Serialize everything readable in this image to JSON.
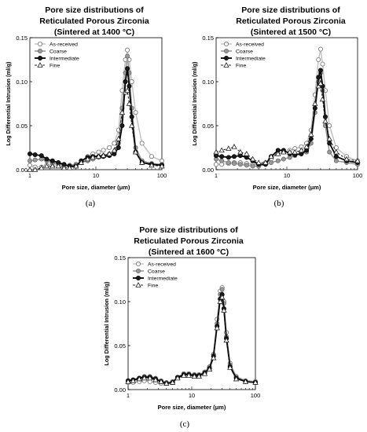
{
  "chart_data": [
    {
      "type": "line",
      "title_line1": "Pore size distributions of",
      "title_line2": "Reticulated Porous Zirconia",
      "title_line3": "(Sintered at 1400 °C)",
      "xlabel": "Pore size, diameter (μm)",
      "ylabel": "Log Differential Intrusion (ml/g)",
      "xscale": "log",
      "xlim": [
        1,
        100
      ],
      "ylim": [
        0,
        0.15
      ],
      "xticks": [
        "1",
        "10",
        "100"
      ],
      "yticks": [
        "0.00",
        "0.05",
        "0.10",
        "0.15"
      ],
      "legend_position": "top-left",
      "caption": "(a)",
      "series": [
        {
          "name": "As-received",
          "marker": "open-circle",
          "color": "#b0b0b0",
          "x": [
            1.0,
            1.2,
            1.5,
            1.8,
            2.2,
            2.7,
            3.3,
            4.0,
            5.0,
            6.0,
            7.5,
            9.0,
            11,
            13,
            16,
            19,
            22,
            25,
            28,
            30,
            32,
            35,
            40,
            50,
            70,
            100
          ],
          "y": [
            0.005,
            0.003,
            0.003,
            0.005,
            0.007,
            0.006,
            0.004,
            0.004,
            0.006,
            0.01,
            0.015,
            0.018,
            0.02,
            0.022,
            0.025,
            0.03,
            0.045,
            0.09,
            0.125,
            0.136,
            0.125,
            0.1,
            0.065,
            0.03,
            0.015,
            0.01
          ]
        },
        {
          "name": "Coarse",
          "marker": "filled-circle",
          "color": "#8a8a8a",
          "x": [
            1.0,
            1.2,
            1.5,
            1.8,
            2.2,
            2.7,
            3.3,
            4.0,
            5.0,
            6.0,
            7.5,
            9.0,
            11,
            13,
            16,
            19,
            22,
            25,
            28,
            30,
            32,
            35,
            40,
            50,
            70,
            100
          ],
          "y": [
            0.01,
            0.011,
            0.012,
            0.01,
            0.008,
            0.006,
            0.005,
            0.005,
            0.006,
            0.008,
            0.01,
            0.012,
            0.014,
            0.016,
            0.018,
            0.02,
            0.03,
            0.07,
            0.11,
            0.129,
            0.11,
            0.07,
            0.025,
            0.01,
            0.007,
            0.006
          ]
        },
        {
          "name": "Intermediate",
          "marker": "filled-circle-black",
          "color": "#000000",
          "x": [
            1.0,
            1.2,
            1.5,
            1.8,
            2.2,
            2.7,
            3.3,
            4.0,
            5.0,
            6.0,
            7.5,
            9.0,
            11,
            13,
            16,
            19,
            22,
            25,
            28,
            30,
            32,
            35,
            40,
            50,
            70,
            100
          ],
          "y": [
            0.018,
            0.017,
            0.016,
            0.012,
            0.01,
            0.008,
            0.006,
            0.004,
            0.004,
            0.01,
            0.014,
            0.015,
            0.015,
            0.015,
            0.016,
            0.018,
            0.025,
            0.05,
            0.1,
            0.115,
            0.095,
            0.06,
            0.02,
            0.008,
            0.006,
            0.005
          ]
        },
        {
          "name": "Fine",
          "marker": "open-triangle",
          "color": "#333333",
          "x": [
            1.0,
            1.2,
            1.5,
            1.8,
            2.2,
            2.7,
            3.3,
            4.0,
            5.0,
            6.0,
            7.5,
            9.0,
            11,
            13,
            16,
            19,
            22,
            25,
            28,
            30,
            32,
            35,
            40,
            50,
            70,
            100
          ],
          "y": [
            0.0,
            0.0,
            0.002,
            0.004,
            0.004,
            0.004,
            0.002,
            0.002,
            0.004,
            0.008,
            0.012,
            0.014,
            0.015,
            0.016,
            0.018,
            0.022,
            0.035,
            0.065,
            0.088,
            0.09,
            0.075,
            0.05,
            0.02,
            0.008,
            0.005,
            0.004
          ]
        }
      ]
    },
    {
      "type": "line",
      "title_line1": "Pore size distributions of",
      "title_line2": "Reticulated Porous Zirconia",
      "title_line3": "(Sintered at 1500 °C)",
      "xlabel": "Pore size, diameter (μm)",
      "ylabel": "Log Differential Intrusion (ml/g)",
      "xscale": "log",
      "xlim": [
        1,
        100
      ],
      "ylim": [
        0,
        0.15
      ],
      "xticks": [
        "1",
        "10",
        "100"
      ],
      "yticks": [
        "0.00",
        "0.05",
        "0.10",
        "0.15"
      ],
      "legend_position": "top-left",
      "caption": "(b)",
      "series": [
        {
          "name": "As-received",
          "marker": "open-circle",
          "color": "#b0b0b0",
          "x": [
            1.0,
            1.2,
            1.5,
            1.8,
            2.2,
            2.7,
            3.3,
            4.0,
            5.0,
            6.0,
            7.5,
            9.0,
            11,
            13,
            16,
            19,
            22,
            25,
            28,
            30,
            32,
            35,
            40,
            50,
            70,
            100
          ],
          "y": [
            0.006,
            0.006,
            0.007,
            0.008,
            0.008,
            0.007,
            0.006,
            0.006,
            0.008,
            0.012,
            0.018,
            0.02,
            0.022,
            0.024,
            0.026,
            0.03,
            0.045,
            0.085,
            0.125,
            0.137,
            0.12,
            0.09,
            0.05,
            0.025,
            0.015,
            0.01
          ]
        },
        {
          "name": "Coarse",
          "marker": "filled-circle",
          "color": "#8a8a8a",
          "x": [
            1.0,
            1.2,
            1.5,
            1.8,
            2.2,
            2.7,
            3.3,
            4.0,
            5.0,
            6.0,
            7.5,
            9.0,
            11,
            13,
            16,
            19,
            22,
            25,
            28,
            30,
            32,
            35,
            40,
            50,
            70,
            100
          ],
          "y": [
            0.012,
            0.01,
            0.008,
            0.007,
            0.006,
            0.005,
            0.004,
            0.004,
            0.006,
            0.008,
            0.01,
            0.012,
            0.014,
            0.016,
            0.018,
            0.02,
            0.03,
            0.065,
            0.1,
            0.11,
            0.09,
            0.05,
            0.02,
            0.01,
            0.008,
            0.006
          ]
        },
        {
          "name": "Intermediate",
          "marker": "filled-circle-black",
          "color": "#000000",
          "x": [
            1.0,
            1.2,
            1.5,
            1.8,
            2.2,
            2.7,
            3.3,
            4.0,
            5.0,
            6.0,
            7.5,
            9.0,
            11,
            13,
            16,
            19,
            22,
            25,
            28,
            30,
            32,
            35,
            40,
            50,
            70,
            100
          ],
          "y": [
            0.016,
            0.015,
            0.014,
            0.015,
            0.016,
            0.014,
            0.01,
            0.006,
            0.006,
            0.015,
            0.022,
            0.022,
            0.018,
            0.017,
            0.018,
            0.022,
            0.035,
            0.07,
            0.105,
            0.113,
            0.095,
            0.06,
            0.03,
            0.015,
            0.01,
            0.008
          ]
        },
        {
          "name": "Fine",
          "marker": "open-triangle",
          "color": "#333333",
          "x": [
            1.0,
            1.2,
            1.5,
            1.8,
            2.2,
            2.7,
            3.3,
            4.0,
            5.0,
            6.0,
            7.5,
            9.0,
            11,
            13,
            16,
            19,
            22,
            25,
            28,
            30,
            32,
            35,
            40,
            50,
            70,
            100
          ],
          "y": [
            0.02,
            0.022,
            0.024,
            0.026,
            0.02,
            0.018,
            0.012,
            0.008,
            0.008,
            0.015,
            0.018,
            0.02,
            0.02,
            0.02,
            0.022,
            0.026,
            0.04,
            0.075,
            0.095,
            0.098,
            0.08,
            0.055,
            0.035,
            0.02,
            0.012,
            0.01
          ]
        }
      ]
    },
    {
      "type": "line",
      "title_line1": "Pore size distributions of",
      "title_line2": "Reticulated Porous Zirconia",
      "title_line3": "(Sintered at 1600 °C)",
      "xlabel": "Pore size, diameter (μm)",
      "ylabel": "Log Differential Intrusion (ml/g)",
      "xscale": "log",
      "xlim": [
        1,
        100
      ],
      "ylim": [
        0,
        0.15
      ],
      "xticks": [
        "1",
        "10",
        "100"
      ],
      "yticks": [
        "0.00",
        "0.05",
        "0.10",
        "0.15"
      ],
      "legend_position": "top-left",
      "caption": "(c)",
      "series": [
        {
          "name": "As-received",
          "marker": "open-circle",
          "color": "#b0b0b0",
          "x": [
            1.0,
            1.2,
            1.5,
            1.8,
            2.2,
            2.7,
            3.3,
            4.0,
            5.0,
            6.0,
            7.5,
            9.0,
            11,
            13,
            16,
            19,
            22,
            25,
            28,
            30,
            32,
            35,
            40,
            50,
            70,
            100
          ],
          "y": [
            0.008,
            0.008,
            0.009,
            0.01,
            0.009,
            0.008,
            0.007,
            0.007,
            0.009,
            0.014,
            0.018,
            0.018,
            0.017,
            0.016,
            0.02,
            0.025,
            0.04,
            0.08,
            0.112,
            0.116,
            0.1,
            0.065,
            0.03,
            0.015,
            0.01,
            0.009
          ]
        },
        {
          "name": "Coarse",
          "marker": "filled-circle",
          "color": "#8a8a8a",
          "x": [
            1.0,
            1.2,
            1.5,
            1.8,
            2.2,
            2.7,
            3.3,
            4.0,
            5.0,
            6.0,
            7.5,
            9.0,
            11,
            13,
            16,
            19,
            22,
            25,
            28,
            30,
            32,
            35,
            40,
            50,
            70,
            100
          ],
          "y": [
            0.01,
            0.011,
            0.013,
            0.015,
            0.015,
            0.013,
            0.01,
            0.008,
            0.009,
            0.014,
            0.018,
            0.018,
            0.017,
            0.017,
            0.02,
            0.026,
            0.04,
            0.075,
            0.108,
            0.114,
            0.098,
            0.06,
            0.028,
            0.014,
            0.01,
            0.009
          ]
        },
        {
          "name": "Intermediate",
          "marker": "filled-circle-black",
          "color": "#000000",
          "x": [
            1.0,
            1.2,
            1.5,
            1.8,
            2.2,
            2.7,
            3.3,
            4.0,
            5.0,
            6.0,
            7.5,
            9.0,
            11,
            13,
            16,
            19,
            22,
            25,
            28,
            30,
            32,
            35,
            40,
            50,
            70,
            100
          ],
          "y": [
            0.01,
            0.011,
            0.013,
            0.014,
            0.014,
            0.012,
            0.009,
            0.007,
            0.008,
            0.014,
            0.017,
            0.017,
            0.016,
            0.016,
            0.019,
            0.024,
            0.038,
            0.072,
            0.103,
            0.108,
            0.092,
            0.058,
            0.026,
            0.013,
            0.009,
            0.008
          ]
        },
        {
          "name": "Fine",
          "marker": "open-triangle",
          "color": "#333333",
          "x": [
            1.0,
            1.2,
            1.5,
            1.8,
            2.2,
            2.7,
            3.3,
            4.0,
            5.0,
            6.0,
            7.5,
            9.0,
            11,
            13,
            16,
            19,
            22,
            25,
            28,
            30,
            32,
            35,
            40,
            50,
            70,
            100
          ],
          "y": [
            0.009,
            0.01,
            0.012,
            0.013,
            0.013,
            0.011,
            0.009,
            0.007,
            0.008,
            0.013,
            0.016,
            0.016,
            0.015,
            0.015,
            0.018,
            0.023,
            0.036,
            0.07,
            0.1,
            0.105,
            0.09,
            0.056,
            0.025,
            0.012,
            0.009,
            0.008
          ]
        }
      ]
    }
  ]
}
